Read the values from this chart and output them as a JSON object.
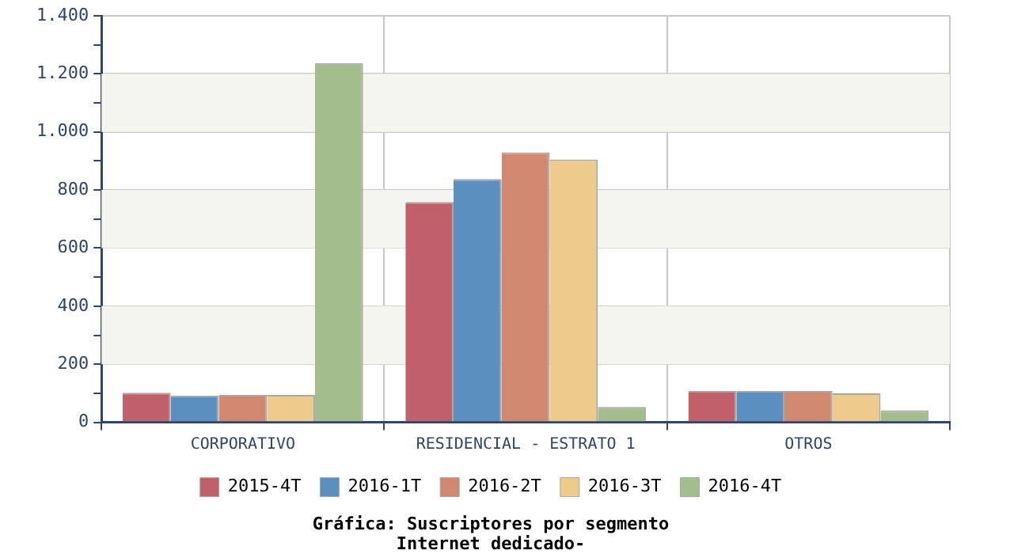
{
  "chart_data": {
    "type": "bar",
    "title": [
      "Gráfica: Suscriptores por segmento",
      "Internet dedicado-"
    ],
    "categories": [
      "CORPORATIVO",
      "RESIDENCIAL - ESTRATO 1",
      "OTROS"
    ],
    "series": [
      {
        "name": "2015-4T",
        "color": "#c0606a",
        "values": [
          102,
          759,
          108
        ]
      },
      {
        "name": "2016-1T",
        "color": "#5b8fbf",
        "values": [
          92,
          838,
          108
        ]
      },
      {
        "name": "2016-2T",
        "color": "#d08870",
        "values": [
          94,
          930,
          108
        ]
      },
      {
        "name": "2016-3T",
        "color": "#eccb8c",
        "values": [
          94,
          905,
          100
        ]
      },
      {
        "name": "2016-4T",
        "color": "#a4bd8c",
        "values": [
          1237,
          53,
          41
        ]
      }
    ],
    "ylim": [
      0,
      1400
    ],
    "yticks": [
      0,
      {
        "value": 100,
        "label": null
      },
      200,
      {
        "value": 300,
        "label": null
      },
      400,
      {
        "value": 500,
        "label": null
      },
      600,
      {
        "value": 700,
        "label": null
      },
      800,
      {
        "value": 900,
        "label": null
      },
      {
        "value": 1000,
        "label": "1.000"
      },
      {
        "value": 1100,
        "label": null
      },
      {
        "value": 1200,
        "label": "1.200"
      },
      {
        "value": 1300,
        "label": null
      },
      {
        "value": 1400,
        "label": "1.400"
      }
    ],
    "grid": true,
    "legend": "bottom"
  }
}
